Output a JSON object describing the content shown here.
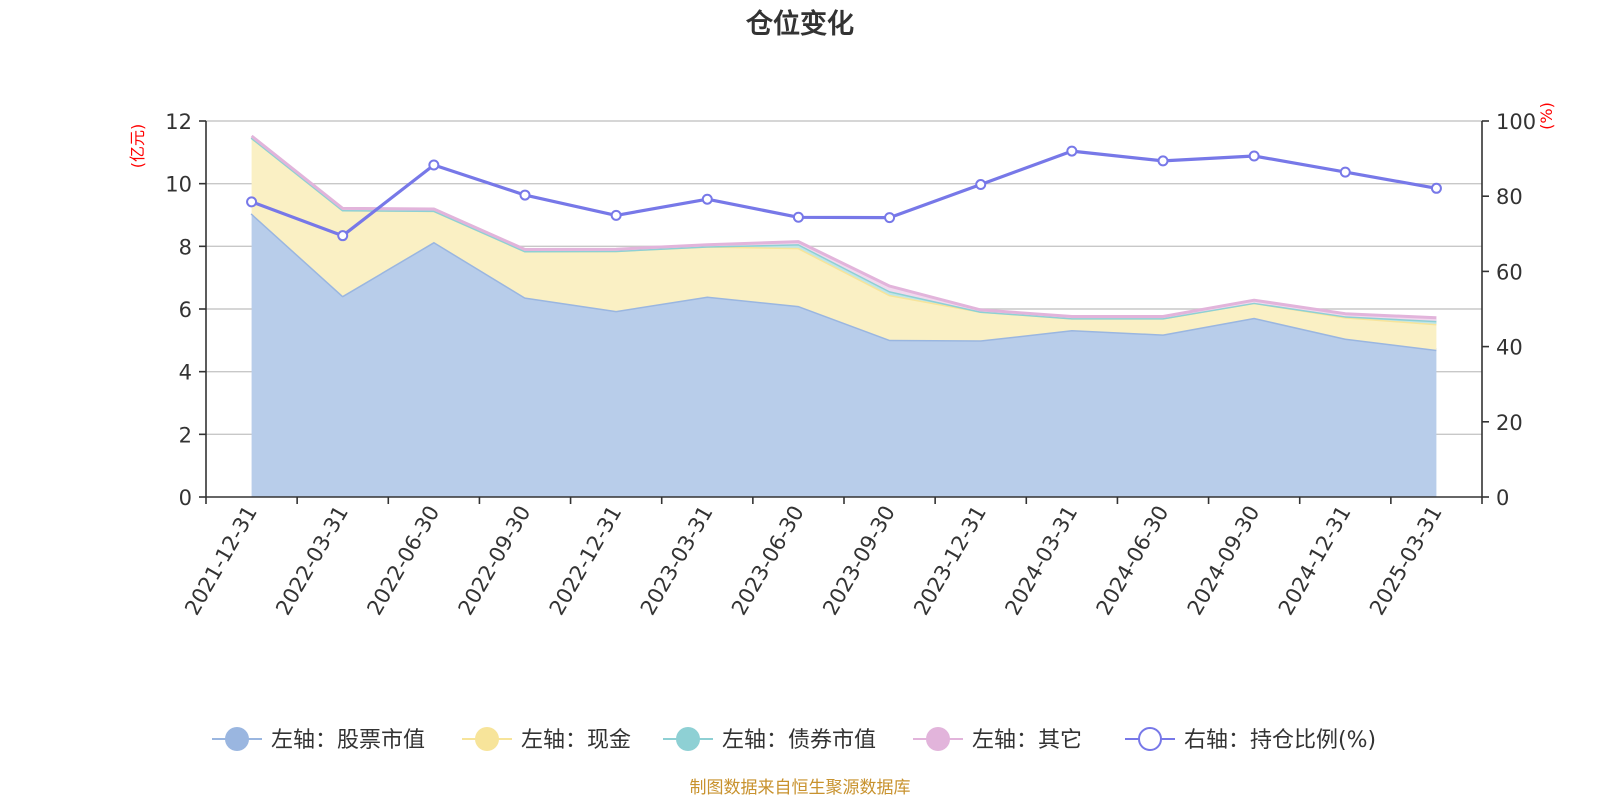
{
  "chart_data": {
    "type": "area",
    "title": "仓位变化",
    "left_unit": "(亿元)",
    "right_unit": "(%)",
    "categories": [
      "2021-12-31",
      "2022-03-31",
      "2022-06-30",
      "2022-09-30",
      "2022-12-31",
      "2023-03-31",
      "2023-06-30",
      "2023-09-30",
      "2023-12-31",
      "2024-03-31",
      "2024-06-30",
      "2024-09-30",
      "2024-12-31",
      "2025-03-31"
    ],
    "left_axis": {
      "min": 0,
      "max": 12,
      "ticks": [
        0,
        2,
        4,
        6,
        8,
        10,
        12
      ]
    },
    "right_axis": {
      "min": 0,
      "max": 100,
      "ticks": [
        0,
        20,
        40,
        60,
        80,
        100
      ]
    },
    "stacked": true,
    "grid": true,
    "legend_position": "bottom",
    "series": [
      {
        "name": "左轴：股票市值",
        "axis": "left",
        "color": "#9ab6e0",
        "fill": "#b8cdea",
        "values": [
          9.05,
          6.42,
          8.14,
          6.37,
          5.94,
          6.4,
          6.1,
          5.02,
          5.0,
          5.33,
          5.19,
          5.72,
          5.06,
          4.7
        ]
      },
      {
        "name": "左轴：现金",
        "axis": "left",
        "color": "#f7e49a",
        "fill": "#faf0c4",
        "values": [
          2.42,
          2.74,
          1.0,
          1.48,
          1.92,
          1.6,
          1.85,
          1.43,
          0.92,
          0.38,
          0.52,
          0.48,
          0.68,
          0.82
        ]
      },
      {
        "name": "左轴：债券市值",
        "axis": "left",
        "color": "#8ed0d4",
        "fill": "#bfe6e8",
        "values": [
          0,
          0,
          0,
          0,
          0,
          0,
          0.12,
          0.12,
          0,
          0,
          0,
          0,
          0.03,
          0.1
        ]
      },
      {
        "name": "左轴：其它",
        "axis": "left",
        "color": "#e2b4db",
        "fill": "#f1d9ee",
        "values": [
          0.05,
          0.05,
          0.05,
          0.05,
          0.05,
          0.05,
          0.08,
          0.16,
          0.05,
          0.05,
          0.05,
          0.08,
          0.08,
          0.1
        ]
      },
      {
        "name": "右轴：持仓比例(%)",
        "axis": "right",
        "color": "#7778e8",
        "type": "line",
        "values": [
          78.5,
          69.5,
          88.3,
          80.3,
          74.9,
          79.2,
          74.4,
          74.3,
          83.1,
          92.0,
          89.4,
          90.7,
          86.4,
          82.1
        ]
      }
    ],
    "source_note": "制图数据来自恒生聚源数据库"
  }
}
